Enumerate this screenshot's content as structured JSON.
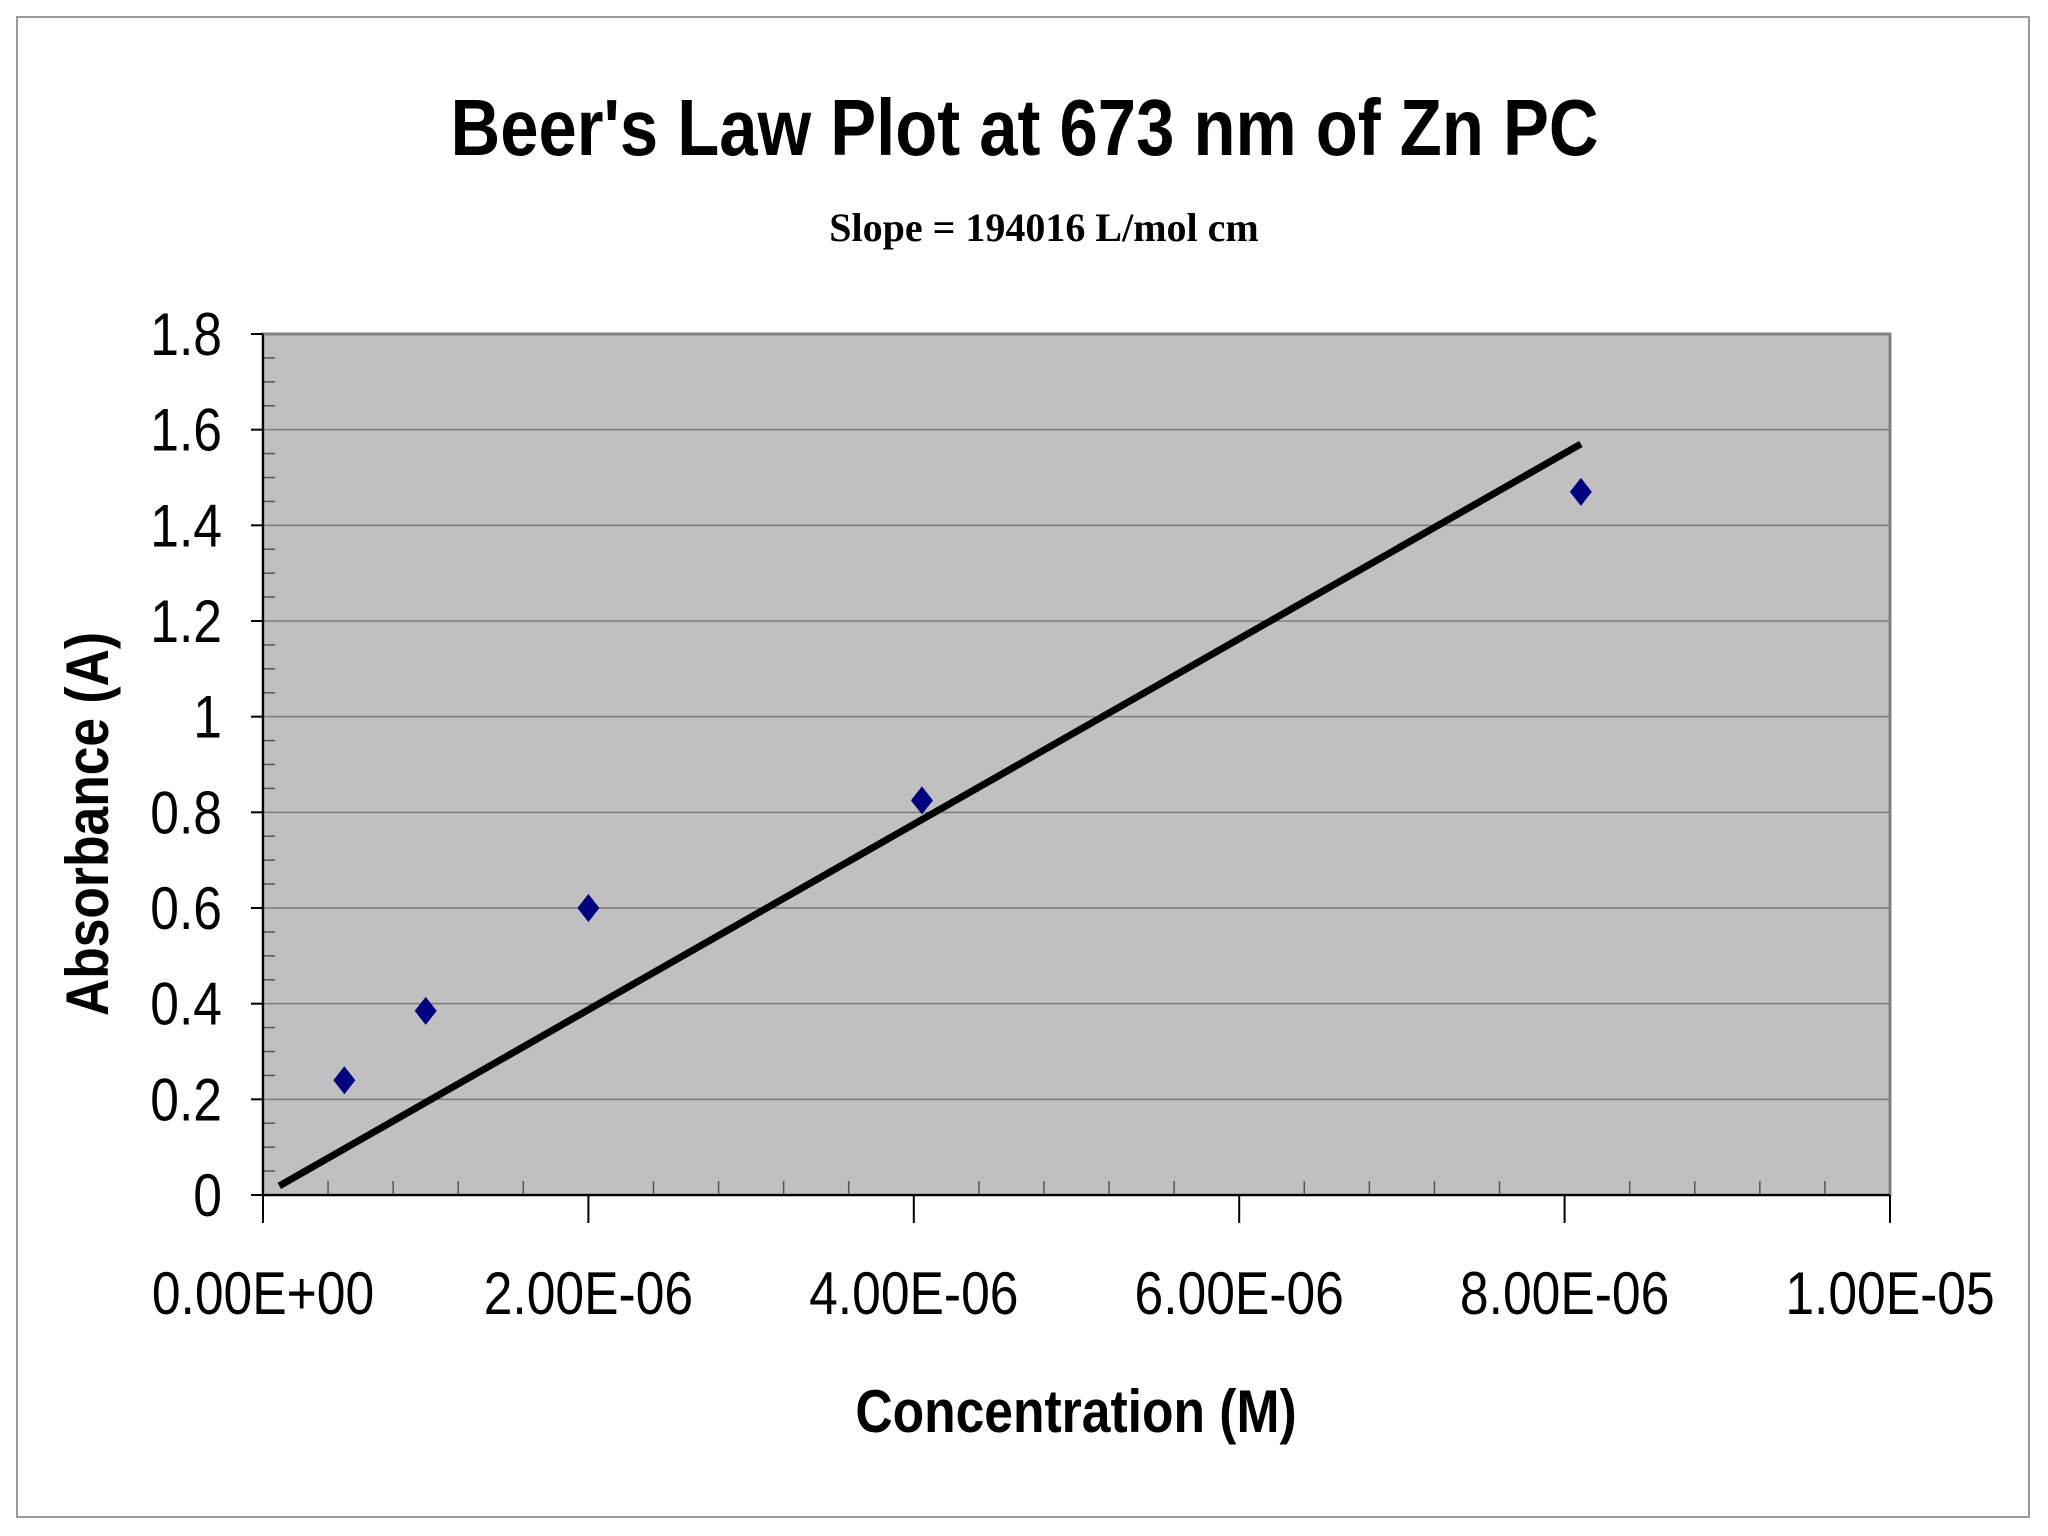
{
  "chart_data": {
    "type": "scatter",
    "title": "Beer's Law Plot at 673 nm of Zn PC",
    "subtitle": "Slope = 194016 L/mol cm",
    "xlabel": "Concentration (M)",
    "ylabel": "Absorbance (A)",
    "xlim": [
      0,
      1e-05
    ],
    "ylim": [
      0,
      1.8
    ],
    "x_tick_labels": [
      "0.00E+00",
      "2.00E-06",
      "4.00E-06",
      "6.00E-06",
      "8.00E-06",
      "1.00E-05"
    ],
    "x_ticks": [
      0,
      2e-06,
      4e-06,
      6e-06,
      8e-06,
      1e-05
    ],
    "y_tick_labels": [
      "0",
      "0.2",
      "0.4",
      "0.6",
      "0.8",
      "1",
      "1.2",
      "1.4",
      "1.6",
      "1.8"
    ],
    "y_ticks": [
      0,
      0.2,
      0.4,
      0.6,
      0.8,
      1.0,
      1.2,
      1.4,
      1.6,
      1.8
    ],
    "grid": "horizontal",
    "plot_background": "#c0c0c0",
    "series": [
      {
        "marker": "diamond",
        "color": "#000080",
        "x": [
          5e-07,
          1e-06,
          2e-06,
          4.05e-06,
          8.1e-06
        ],
        "y": [
          0.24,
          0.385,
          0.6,
          0.825,
          1.47
        ]
      }
    ],
    "trendline": {
      "color": "#000000",
      "x": [
        1e-07,
        8.1e-06
      ],
      "y": [
        0.019,
        1.57
      ]
    }
  }
}
